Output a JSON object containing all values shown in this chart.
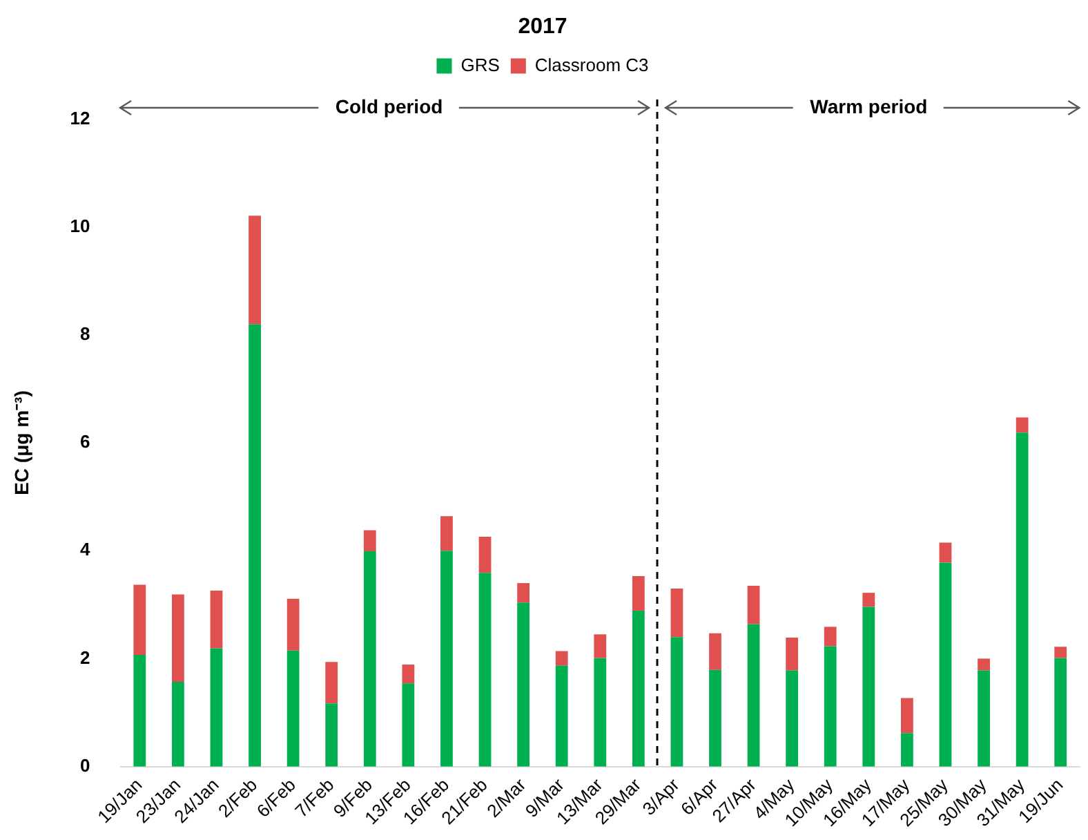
{
  "chart_data": {
    "type": "bar",
    "title": "2017",
    "ylabel": "EC (μg m⁻³)",
    "categories": [
      "19/Jan",
      "23/Jan",
      "24/Jan",
      "2/Feb",
      "6/Feb",
      "7/Feb",
      "9/Feb",
      "13/Feb",
      "16/Feb",
      "21/Feb",
      "2/Mar",
      "9/Mar",
      "13/Mar",
      "29/Mar",
      "3/Apr",
      "6/Apr",
      "27/Apr",
      "4/May",
      "10/May",
      "16/May",
      "17/May",
      "25/May",
      "30/May",
      "31/May",
      "19/Jun"
    ],
    "stacked": true,
    "series": [
      {
        "name": "GRS",
        "color": "#00b050",
        "values": [
          2.07,
          1.57,
          2.19,
          8.2,
          2.15,
          1.17,
          3.99,
          1.54,
          4.0,
          3.59,
          3.04,
          1.87,
          2.01,
          2.89,
          2.4,
          1.79,
          2.64,
          1.78,
          2.23,
          2.96,
          0.62,
          3.78,
          1.78,
          6.19,
          2.01
        ]
      },
      {
        "name": "Classroom C3",
        "color": "#e0504e",
        "values": [
          1.3,
          1.62,
          1.07,
          2.01,
          0.96,
          0.77,
          0.39,
          0.35,
          0.64,
          0.67,
          0.36,
          0.27,
          0.44,
          0.64,
          0.9,
          0.68,
          0.71,
          0.61,
          0.36,
          0.26,
          0.65,
          0.37,
          0.22,
          0.28,
          0.21
        ]
      }
    ],
    "ylim": [
      0,
      12
    ],
    "yticks": [
      0,
      2,
      4,
      6,
      8,
      10,
      12
    ],
    "grid": false,
    "legend": "top",
    "annotations": [
      "Cold period",
      "Warm period"
    ]
  }
}
